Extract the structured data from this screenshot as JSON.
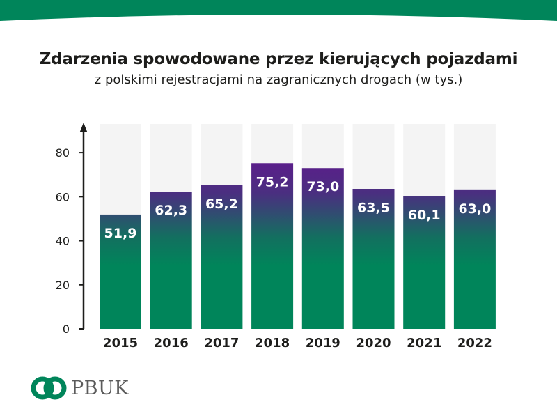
{
  "brand": {
    "name": "PBUK",
    "colors": {
      "green": "#00855a",
      "purple": "#5a1f8a",
      "slot": "#f4f4f4",
      "text": "#1d1d1b"
    }
  },
  "chart_data": {
    "type": "bar",
    "title": "Zdarzenia spowodowane przez kierujących pojazdami",
    "subtitle": "z polskimi rejestracjami na zagranicznych drogach (w tys.)",
    "xlabel": "",
    "ylabel": "",
    "categories": [
      "2015",
      "2016",
      "2017",
      "2018",
      "2019",
      "2020",
      "2021",
      "2022"
    ],
    "values": [
      51.9,
      62.3,
      65.2,
      75.2,
      73.0,
      63.5,
      60.1,
      63.0
    ],
    "value_labels": [
      "51,9",
      "62,3",
      "65,2",
      "75,2",
      "73,0",
      "63,5",
      "60,1",
      "63,0"
    ],
    "ylim": [
      0,
      93
    ],
    "yticks": [
      0,
      20,
      40,
      60,
      80
    ],
    "grid": false,
    "legend": "none"
  }
}
